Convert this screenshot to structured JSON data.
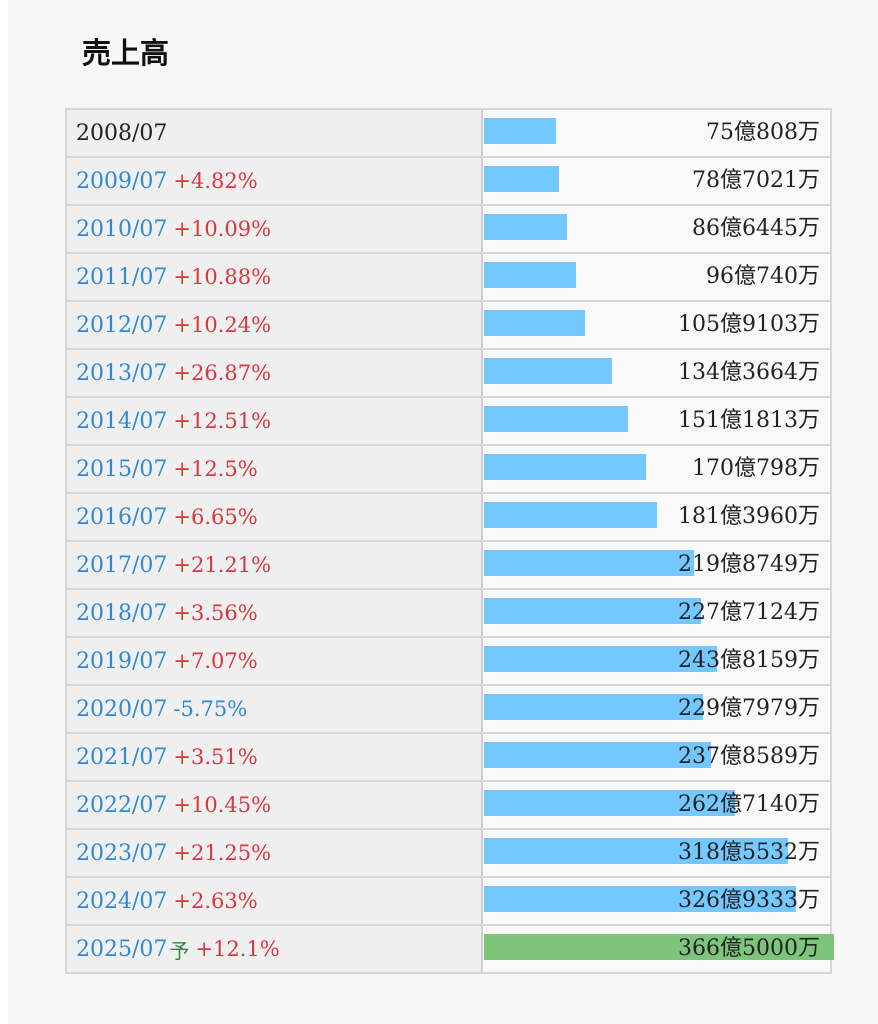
{
  "title": "売上高",
  "colors": {
    "bar": "#72c8ff",
    "forecast_bar": "#7dc57a",
    "increase": "#d9363e",
    "decrease": "#2f8ad1",
    "year": "#2f8ad1"
  },
  "chart_data": {
    "type": "bar",
    "orientation": "horizontal",
    "title": "売上高",
    "unit": "万円",
    "categories": [
      "2008/07",
      "2009/07",
      "2010/07",
      "2011/07",
      "2012/07",
      "2013/07",
      "2014/07",
      "2015/07",
      "2016/07",
      "2017/07",
      "2018/07",
      "2019/07",
      "2020/07",
      "2021/07",
      "2022/07",
      "2023/07",
      "2024/07",
      "2025/07"
    ],
    "values": [
      750808,
      787021,
      866445,
      960740,
      1059103,
      1343664,
      1511813,
      1700798,
      1813960,
      2198749,
      2277124,
      2438159,
      2297979,
      2378589,
      2627140,
      3185532,
      3269333,
      3665000
    ],
    "value_labels": [
      "75億808万",
      "78億7021万",
      "86億6445万",
      "96億740万",
      "105億9103万",
      "134億3664万",
      "151億1813万",
      "170億798万",
      "181億3960万",
      "219億8749万",
      "227億7124万",
      "243億8159万",
      "229億7979万",
      "237億8589万",
      "262億7140万",
      "318億5532万",
      "326億9333万",
      "366億5000万"
    ],
    "yoy_labels": [
      "",
      "+4.82%",
      "+10.09%",
      "+10.88%",
      "+10.24%",
      "+26.87%",
      "+12.51%",
      "+12.5%",
      "+6.65%",
      "+21.21%",
      "+3.56%",
      "+7.07%",
      "-5.75%",
      "+3.51%",
      "+10.45%",
      "+21.25%",
      "+2.63%",
      "+12.1%"
    ],
    "forecast_index": 17,
    "forecast_marker": "予"
  }
}
